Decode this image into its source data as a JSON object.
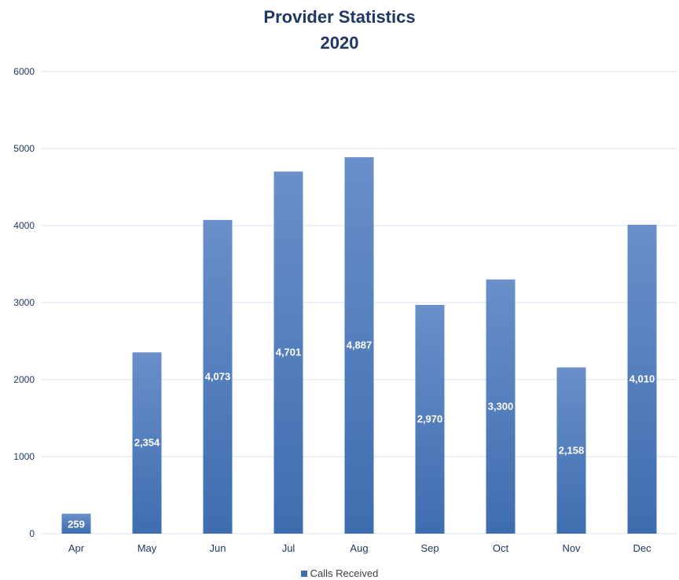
{
  "chart_data": {
    "type": "bar",
    "title": [
      "Provider Statistics",
      "2020"
    ],
    "categories": [
      "Apr",
      "May",
      "Jun",
      "Jul",
      "Aug",
      "Sep",
      "Oct",
      "Nov",
      "Dec"
    ],
    "series": [
      {
        "name": "Calls Received",
        "values": [
          259,
          2354,
          4073,
          4701,
          4887,
          2970,
          3300,
          2158,
          4010
        ],
        "data_labels": [
          "259",
          "2,354",
          "4,073",
          "4,701",
          "4,887",
          "2,970",
          "3,300",
          "2,158",
          "4,010"
        ]
      }
    ],
    "y_ticks": [
      "0",
      "1000",
      "2000",
      "3000",
      "4000",
      "5000",
      "6000"
    ],
    "ylim": [
      0,
      6000
    ],
    "grid": true,
    "legend_position": "bottom",
    "colors": {
      "bar_top": "#6a8fc9",
      "bar_bottom": "#3e6db0",
      "title": "#1f3864",
      "grid": "#d9e3f0",
      "axis_text": "#1f3864",
      "data_label": "#ffffff"
    }
  }
}
